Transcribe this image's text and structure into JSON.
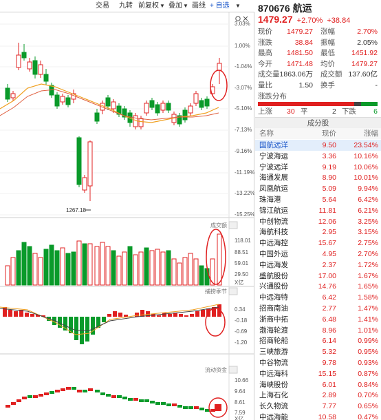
{
  "toolbar": {
    "items": [
      "交易",
      "九转",
      "前复权",
      "叠加",
      "画线",
      "+ 自选"
    ],
    "arrows": [
      "▼",
      "▼",
      "▼"
    ]
  },
  "chart": {
    "main_axis_labels": [
      "3.03%",
      "1.00%",
      "-1.04%",
      "-3.07%",
      "-5.10%",
      "-7.13%",
      "-9.16%",
      "-11.19%",
      "-13.22%",
      "-15.25%"
    ],
    "low_marker": "1267.18",
    "volume_title": "成交额",
    "volume_axis_labels": [
      "118.01",
      "88.51",
      "59.01",
      "29.50",
      "X亿"
    ],
    "macd_title": "捕捞季节",
    "macd_axis_labels": [
      "0.34",
      "-0.18",
      "-0.69",
      "-1.20"
    ],
    "flow_title": "流动资金",
    "flow_axis_labels": [
      "10.66",
      "9.64",
      "8.61",
      "7.59",
      "X亿"
    ],
    "colors": {
      "up": "#e02020",
      "down": "#0a9a2a",
      "ma_orange": "#f0a020",
      "ma_red": "#e06040",
      "highlight": "#e02020"
    }
  },
  "quote": {
    "code": "870676",
    "name": "航运",
    "price": "1479.27",
    "change_pct": "+2.70%",
    "change": "+38.84",
    "rows": [
      {
        "l1": "现价",
        "v1": "1479.27",
        "c1": "red",
        "l2": "涨幅",
        "v2": "2.70%",
        "c2": "red"
      },
      {
        "l1": "涨跌",
        "v1": "38.84",
        "c1": "red",
        "l2": "振幅",
        "v2": "2.05%",
        "c2": "dark"
      },
      {
        "l1": "最高",
        "v1": "1481.50",
        "c1": "red",
        "l2": "最低",
        "v2": "1451.92",
        "c2": "red"
      },
      {
        "l1": "今开",
        "v1": "1471.48",
        "c1": "red",
        "l2": "均价",
        "v2": "1479.27",
        "c2": "red"
      },
      {
        "l1": "成交量",
        "v1": "1863.06万",
        "c1": "dark",
        "l2": "成交额",
        "v2": "137.60亿",
        "c2": "dark"
      },
      {
        "l1": "量比",
        "v1": "1.50",
        "c1": "dark",
        "l2": "换手",
        "v2": "-",
        "c2": "dark"
      }
    ],
    "distribution": {
      "title": "涨跌分布",
      "up_label": "上涨",
      "up_count": "30",
      "flat_label": "平",
      "flat_count": "2",
      "down_label": "下跌",
      "down_count": "6"
    },
    "constituents": {
      "title": "成分股",
      "headers": [
        "名称",
        "现价",
        "涨幅"
      ],
      "rows": [
        {
          "name": "国航远洋",
          "price": "9.50",
          "pct": "23.54%"
        },
        {
          "name": "宁波海运",
          "price": "3.36",
          "pct": "10.16%"
        },
        {
          "name": "宁波远洋",
          "price": "9.19",
          "pct": "10.06%"
        },
        {
          "name": "海通发展",
          "price": "8.90",
          "pct": "10.01%"
        },
        {
          "name": "凤凰航运",
          "price": "5.09",
          "pct": "9.94%"
        },
        {
          "name": "珠海港",
          "price": "5.64",
          "pct": "6.42%"
        },
        {
          "name": "锦江航运",
          "price": "11.81",
          "pct": "6.21%"
        },
        {
          "name": "中创物流",
          "price": "12.06",
          "pct": "3.25%"
        },
        {
          "name": "海航科技",
          "price": "2.95",
          "pct": "3.15%"
        },
        {
          "name": "中远海控",
          "price": "15.67",
          "pct": "2.75%"
        },
        {
          "name": "中国外运",
          "price": "4.95",
          "pct": "2.70%"
        },
        {
          "name": "中远海发",
          "price": "2.37",
          "pct": "1.72%"
        },
        {
          "name": "盛航股份",
          "price": "17.00",
          "pct": "1.67%"
        },
        {
          "name": "兴通股份",
          "price": "14.76",
          "pct": "1.65%"
        },
        {
          "name": "中远海特",
          "price": "6.42",
          "pct": "1.58%"
        },
        {
          "name": "招商南油",
          "price": "2.77",
          "pct": "1.47%"
        },
        {
          "name": "浙商中拓",
          "price": "6.48",
          "pct": "1.41%"
        },
        {
          "name": "渤海轮渡",
          "price": "8.96",
          "pct": "1.01%"
        },
        {
          "name": "招商轮船",
          "price": "6.14",
          "pct": "0.99%"
        },
        {
          "name": "三峡旅游",
          "price": "5.32",
          "pct": "0.95%"
        },
        {
          "name": "中谷物流",
          "price": "9.78",
          "pct": "0.93%"
        },
        {
          "name": "中远海科",
          "price": "15.15",
          "pct": "0.87%"
        },
        {
          "name": "海峡股份",
          "price": "6.01",
          "pct": "0.84%"
        },
        {
          "name": "上海石化",
          "price": "2.89",
          "pct": "0.70%"
        },
        {
          "name": "长久物流",
          "price": "7.77",
          "pct": "0.65%"
        },
        {
          "name": "中远海能",
          "price": "10.58",
          "pct": "0.47%"
        }
      ]
    }
  }
}
